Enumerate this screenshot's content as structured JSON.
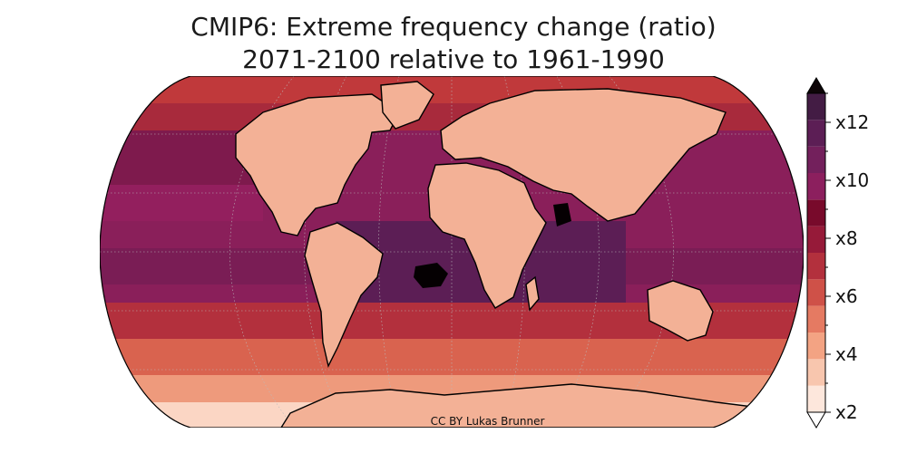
{
  "title": {
    "line1": "CMIP6: Extreme frequency change (ratio)",
    "line2": "2071-2100 relative to 1961-1990"
  },
  "credit": "CC BY Lukas Brunner",
  "colorbar": {
    "min": 2,
    "max": 13,
    "step": 1,
    "extend": "both",
    "labels": [
      "x2",
      "x4",
      "x6",
      "x8",
      "x10",
      "x12"
    ],
    "label_values": [
      2,
      4,
      6,
      8,
      10,
      12
    ],
    "colors": [
      "#fde7dc",
      "#f8c6ae",
      "#f3a383",
      "#e57a62",
      "#cf5148",
      "#b3303d",
      "#961a39",
      "#780a2b",
      "#8c1f5e",
      "#73205c",
      "#5c1e55",
      "#431c44"
    ],
    "over_color": "#0d0507",
    "under_color": "#ffffff"
  },
  "map": {
    "projection": "Robinson",
    "ocean_base": "#8a1f5a",
    "land_base": "#f3b196",
    "outline_color": "#000000",
    "gridlines": true,
    "hotspot_color": "#050002"
  }
}
